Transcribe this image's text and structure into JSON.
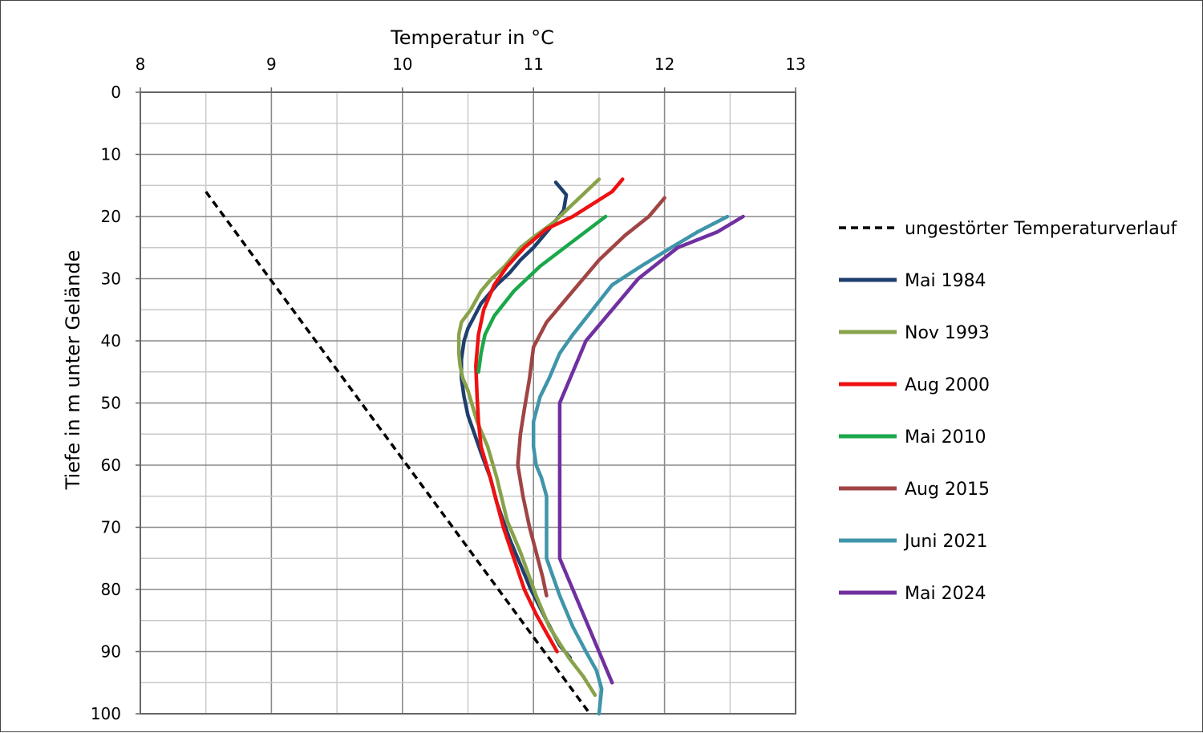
{
  "chart_data": {
    "type": "line",
    "xlabel": "Temperatur in °C",
    "ylabel": "Tiefe in m unter Gelände",
    "xlim": [
      8,
      13
    ],
    "ylim": [
      0,
      100
    ],
    "y_inverted": true,
    "x_axis_position": "top",
    "xticks": [
      "8",
      "9",
      "10",
      "11",
      "12",
      "13"
    ],
    "yticks": [
      "0",
      "10",
      "20",
      "30",
      "40",
      "50",
      "60",
      "70",
      "80",
      "90",
      "100"
    ],
    "x_grid_step": 0.5,
    "y_grid_step": 5,
    "grid": true,
    "legend_position": "right",
    "series": [
      {
        "name": "ungestörter Temperaturverlauf",
        "color": "#000000",
        "dashed": true,
        "x": [
          8.5,
          11.43
        ],
        "y": [
          16,
          100
        ]
      },
      {
        "name": "Mai 1984",
        "color": "#1f3f6e",
        "dashed": false,
        "x": [
          11.17,
          11.21,
          11.25,
          11.23,
          11.12,
          11.0,
          10.9,
          10.82,
          10.72,
          10.6,
          10.55,
          10.5,
          10.47,
          10.45,
          10.45,
          10.47,
          10.5,
          10.55,
          10.6,
          10.67,
          10.72,
          10.77,
          10.82,
          10.9,
          10.98,
          11.1,
          11.2,
          11.28
        ],
        "y": [
          14.5,
          15.5,
          16.5,
          19,
          22,
          25,
          27,
          29,
          31,
          34,
          36,
          38,
          40,
          43,
          46,
          49,
          52,
          55,
          58,
          62,
          66,
          69,
          72,
          76,
          80,
          85,
          89,
          91
        ]
      },
      {
        "name": "Nov 1993",
        "color": "#88a24a",
        "dashed": false,
        "x": [
          11.5,
          11.4,
          11.3,
          11.15,
          11.02,
          10.9,
          10.78,
          10.68,
          10.6,
          10.52,
          10.45,
          10.43,
          10.43,
          10.44,
          10.46,
          10.5,
          10.57,
          10.65,
          10.72,
          10.8,
          10.9,
          11.02,
          11.12,
          11.27,
          11.38,
          11.47
        ],
        "y": [
          14,
          16,
          18,
          21,
          23,
          25,
          28,
          30,
          32,
          35,
          37,
          39,
          42,
          44,
          46,
          48,
          53,
          57,
          62,
          69,
          74,
          81,
          86,
          91,
          94,
          97
        ]
      },
      {
        "name": "Aug 2000",
        "color": "#ee1111",
        "dashed": false,
        "x": [
          11.68,
          11.6,
          11.45,
          11.3,
          11.1,
          10.93,
          10.8,
          10.7,
          10.62,
          10.58,
          10.56,
          10.57,
          10.58,
          10.6,
          10.67,
          10.72,
          10.77,
          10.85,
          10.93,
          11.02,
          11.1,
          11.18
        ],
        "y": [
          14,
          16,
          18,
          20,
          22,
          25,
          28,
          31,
          35,
          39,
          44,
          49,
          53,
          57,
          62,
          66,
          70,
          75,
          80,
          84,
          87,
          90
        ]
      },
      {
        "name": "Mai 2010",
        "color": "#1aa84a",
        "dashed": false,
        "x": [
          11.55,
          11.3,
          11.05,
          10.85,
          10.7,
          10.63,
          10.6,
          10.58
        ],
        "y": [
          20,
          24,
          28,
          32,
          36,
          39,
          42,
          45
        ]
      },
      {
        "name": "Aug 2015",
        "color": "#a04444",
        "dashed": false,
        "x": [
          12.0,
          11.88,
          11.7,
          11.5,
          11.3,
          11.1,
          11.0,
          10.97,
          10.93,
          10.9,
          10.88,
          10.92,
          10.97,
          11.02,
          11.07,
          11.1
        ],
        "y": [
          17,
          20,
          23,
          27,
          32,
          37,
          41,
          46,
          51,
          55,
          60,
          65,
          70,
          74,
          78,
          81
        ]
      },
      {
        "name": "Juni 2021",
        "color": "#3f95aa",
        "dashed": false,
        "x": [
          12.48,
          12.25,
          12.05,
          11.82,
          11.6,
          11.45,
          11.3,
          11.2,
          11.12,
          11.05,
          11.0,
          11.0,
          11.02,
          11.06,
          11.1,
          11.1,
          11.1,
          11.2,
          11.3,
          11.4,
          11.48,
          11.52,
          11.5
        ],
        "y": [
          20,
          22.5,
          25,
          28,
          31,
          35,
          39,
          42,
          46,
          49,
          53,
          57,
          60,
          62,
          65,
          70,
          75,
          81,
          86,
          90,
          93,
          96,
          100
        ]
      },
      {
        "name": "Mai 2024",
        "color": "#7030a0",
        "dashed": false,
        "x": [
          12.6,
          12.4,
          12.1,
          11.8,
          11.4,
          11.2,
          11.2,
          11.2,
          11.2,
          11.4,
          11.6
        ],
        "y": [
          20,
          22.5,
          25,
          30,
          40,
          50,
          55,
          60,
          75,
          85,
          95
        ]
      }
    ]
  }
}
